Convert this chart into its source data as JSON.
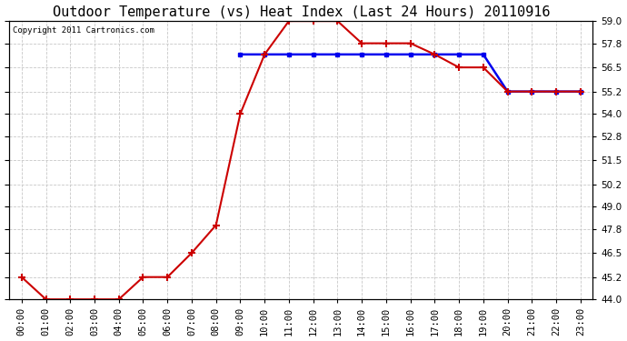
{
  "title": "Outdoor Temperature (vs) Heat Index (Last 24 Hours) 20110916",
  "copyright": "Copyright 2011 Cartronics.com",
  "hours": [
    "00:00",
    "01:00",
    "02:00",
    "03:00",
    "04:00",
    "05:00",
    "06:00",
    "07:00",
    "08:00",
    "09:00",
    "10:00",
    "11:00",
    "12:00",
    "13:00",
    "14:00",
    "15:00",
    "16:00",
    "17:00",
    "18:00",
    "19:00",
    "20:00",
    "21:00",
    "22:00",
    "23:00"
  ],
  "temp": [
    45.2,
    44.0,
    44.0,
    44.0,
    44.0,
    45.2,
    45.2,
    46.5,
    48.0,
    54.0,
    57.2,
    59.0,
    59.0,
    59.0,
    57.8,
    57.8,
    57.8,
    57.2,
    56.5,
    56.5,
    55.2,
    55.2,
    55.2,
    55.2
  ],
  "heat_index_x": [
    9,
    10,
    11,
    12,
    13,
    14,
    15,
    16,
    17,
    18,
    19,
    20,
    21,
    22,
    23
  ],
  "heat_index_y": [
    57.2,
    57.2,
    57.2,
    57.2,
    57.2,
    57.2,
    57.2,
    57.2,
    57.2,
    57.2,
    57.2,
    55.2,
    55.2,
    55.2,
    55.2
  ],
  "ylim_min": 44.0,
  "ylim_max": 59.0,
  "yticks": [
    44.0,
    45.2,
    46.5,
    47.8,
    49.0,
    50.2,
    51.5,
    52.8,
    54.0,
    55.2,
    56.5,
    57.8,
    59.0
  ],
  "bg_color": "#ffffff",
  "plot_bg_color": "#ffffff",
  "grid_color": "#c8c8c8",
  "temp_color": "#cc0000",
  "heat_index_color": "#0000ee",
  "title_color": "#000000",
  "axis_color": "#000000",
  "title_fontsize": 11,
  "tick_fontsize": 7.5,
  "copyright_fontsize": 6.5,
  "figwidth": 6.9,
  "figheight": 3.75,
  "dpi": 100
}
